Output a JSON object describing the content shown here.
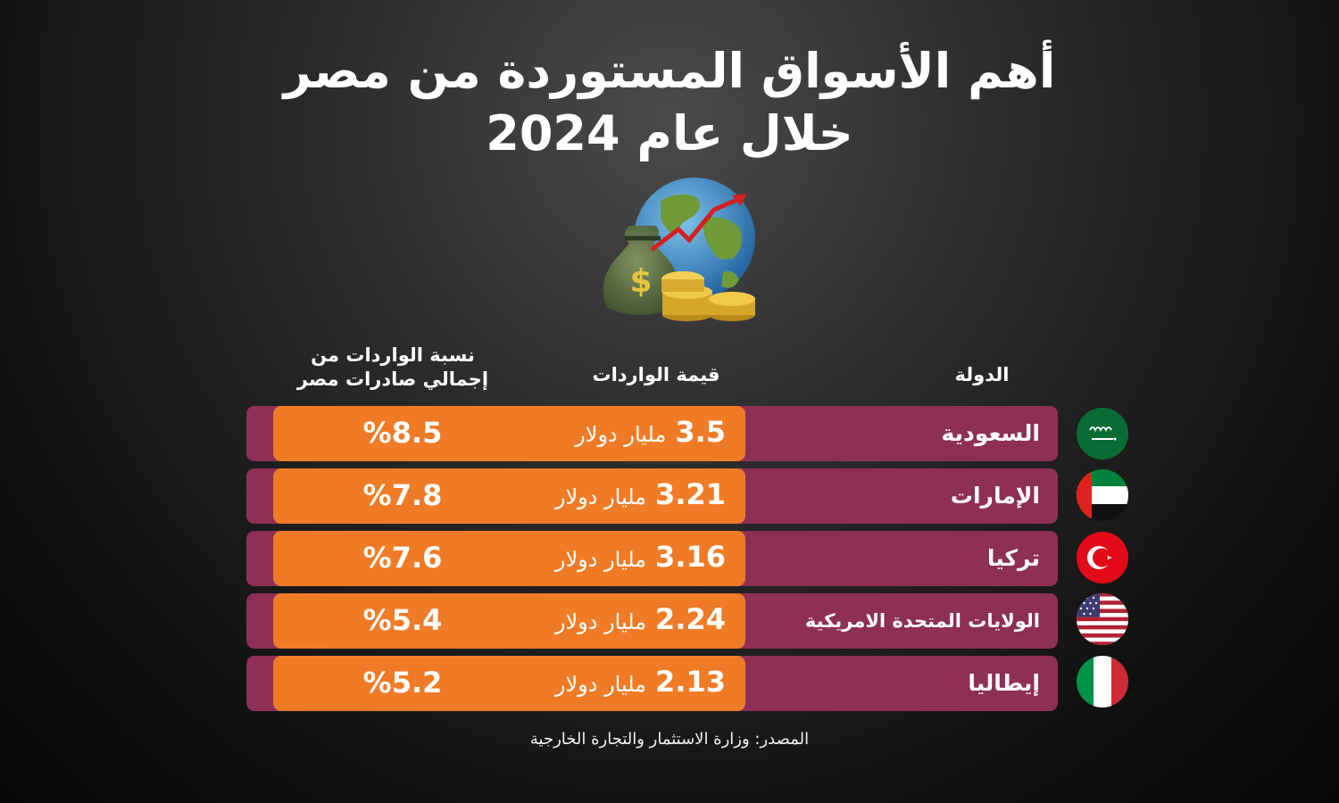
{
  "title": {
    "line1": "أهم الأسواق المستوردة من مصر",
    "line2": "خلال عام 2024"
  },
  "headers": {
    "country": "الدولة",
    "value": "قيمة الواردات",
    "share_line1": "نسبة الواردات من",
    "share_line2": "إجمالي صادرات مصر"
  },
  "rows": [
    {
      "country": "السعودية",
      "value": "3.5",
      "unit": "مليار دولار",
      "share": "%8.5",
      "flag_icon": "saudi-flag-icon"
    },
    {
      "country": "الإمارات",
      "value": "3.21",
      "unit": "مليار دولار",
      "share": "%7.8",
      "flag_icon": "uae-flag-icon"
    },
    {
      "country": "تركيا",
      "value": "3.16",
      "unit": "مليار دولار",
      "share": "%7.6",
      "flag_icon": "turkey-flag-icon"
    },
    {
      "country": "الولايات المتحدة الامريكية",
      "value": "2.24",
      "unit": "مليار دولار",
      "share": "%5.4",
      "flag_icon": "usa-flag-icon"
    },
    {
      "country": "إيطاليا",
      "value": "2.13",
      "unit": "مليار دولار",
      "share": "%5.2",
      "flag_icon": "italy-flag-icon"
    }
  ],
  "source": "المصدر: وزارة الاستثمار والتجارة الخارجية",
  "colors": {
    "row": "#8e2f55",
    "highlight": "#f07b26"
  }
}
